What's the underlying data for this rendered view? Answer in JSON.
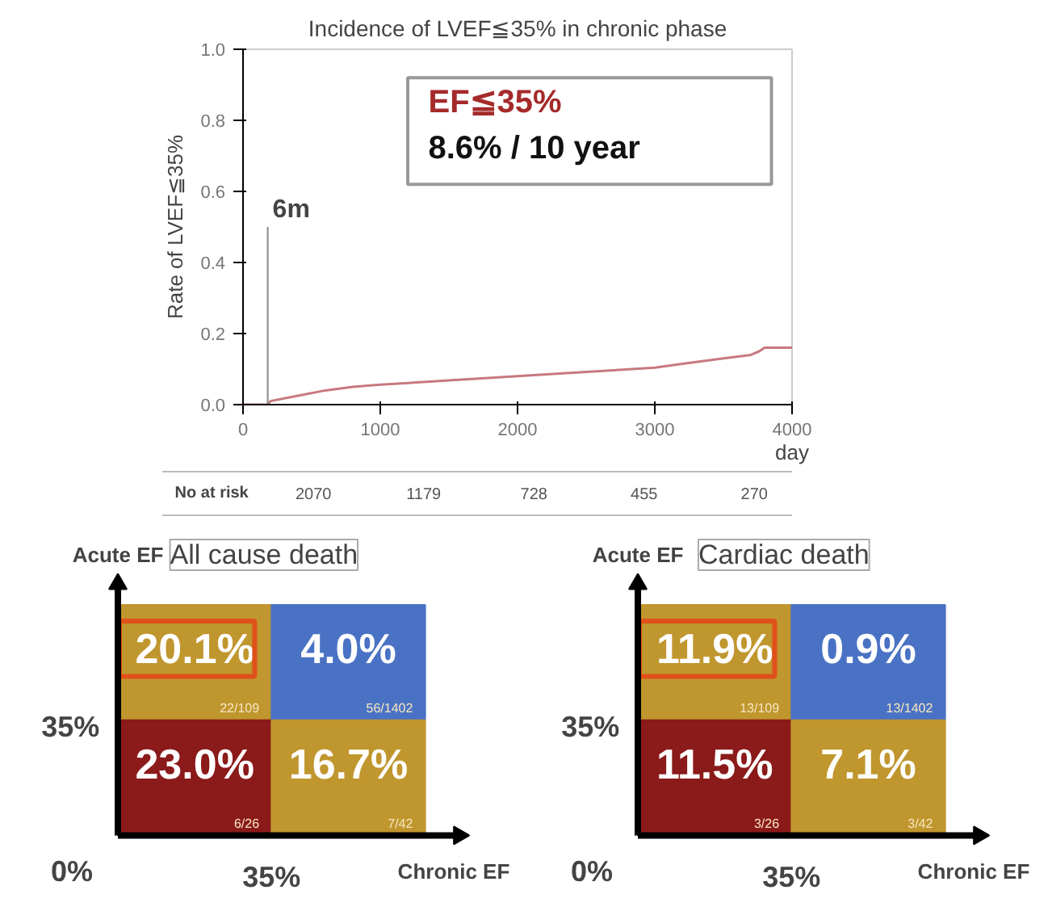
{
  "chart_data": [
    {
      "type": "line",
      "title": "Incidence of LVEF≦35% in chronic phase",
      "xlabel": "day",
      "ylabel": "Rate of LVEF≦35%",
      "x": [
        0,
        180,
        200,
        400,
        600,
        800,
        1000,
        1500,
        2000,
        2500,
        3000,
        3200,
        3500,
        3700,
        3760,
        3800,
        4000
      ],
      "series": [
        {
          "color": "#c87880",
          "values": [
            0,
            0,
            0.01,
            0.025,
            0.04,
            0.05,
            0.056,
            0.068,
            0.08,
            0.092,
            0.104,
            0.115,
            0.13,
            0.14,
            0.15,
            0.16,
            0.16
          ]
        }
      ],
      "xlim": [
        0,
        4000
      ],
      "xticks": [
        0,
        1000,
        2000,
        3000,
        4000
      ],
      "ylim": [
        0,
        1
      ],
      "yticks": [
        {
          "value": 0,
          "label": "0.0"
        },
        {
          "value": 0.2,
          "label": "0.2"
        },
        {
          "value": 0.4,
          "label": "0.4"
        },
        {
          "value": 0.6,
          "label": "0.6"
        },
        {
          "value": 0.8,
          "label": "0.8"
        },
        {
          "value": 1,
          "label": "1.0"
        }
      ],
      "ref_lines": [
        {
          "axis": "x",
          "value": 180,
          "label": "6m",
          "color": "#888888"
        }
      ],
      "annotations": [
        "EF≦35%",
        "8.6% / 10 year",
        "No at risk",
        "2070",
        "1179",
        "728",
        "455",
        "270"
      ],
      "grid": false
    },
    {
      "type": "other",
      "title": "All cause death",
      "xlabel": "Chronic EF",
      "ylabel": "Acute EF",
      "values": [
        20.1,
        4.0,
        23.0,
        16.7
      ],
      "value_labels": [
        "20.1%",
        "4.0%",
        "23.0%",
        "16.7%"
      ],
      "colors": [
        "#c0962e",
        "#4a72c4",
        "#8b1a1a",
        "#c0962e"
      ],
      "annotations": [
        "0%",
        "35%",
        "35%",
        "22/109",
        "56/1402",
        "6/26",
        "7/42"
      ]
    },
    {
      "type": "other",
      "title": "Cardiac death",
      "xlabel": "Chronic EF",
      "ylabel": "Acute EF",
      "values": [
        11.9,
        0.9,
        11.5,
        7.1
      ],
      "value_labels": [
        "11.9%",
        "0.9%",
        "11.5%",
        "7.1%"
      ],
      "colors": [
        "#c0962e",
        "#4a72c4",
        "#8b1a1a",
        "#c0962e"
      ],
      "annotations": [
        "0%",
        "35%",
        "35%",
        "13/109",
        "13/1402",
        "3/26",
        "3/42"
      ]
    }
  ]
}
